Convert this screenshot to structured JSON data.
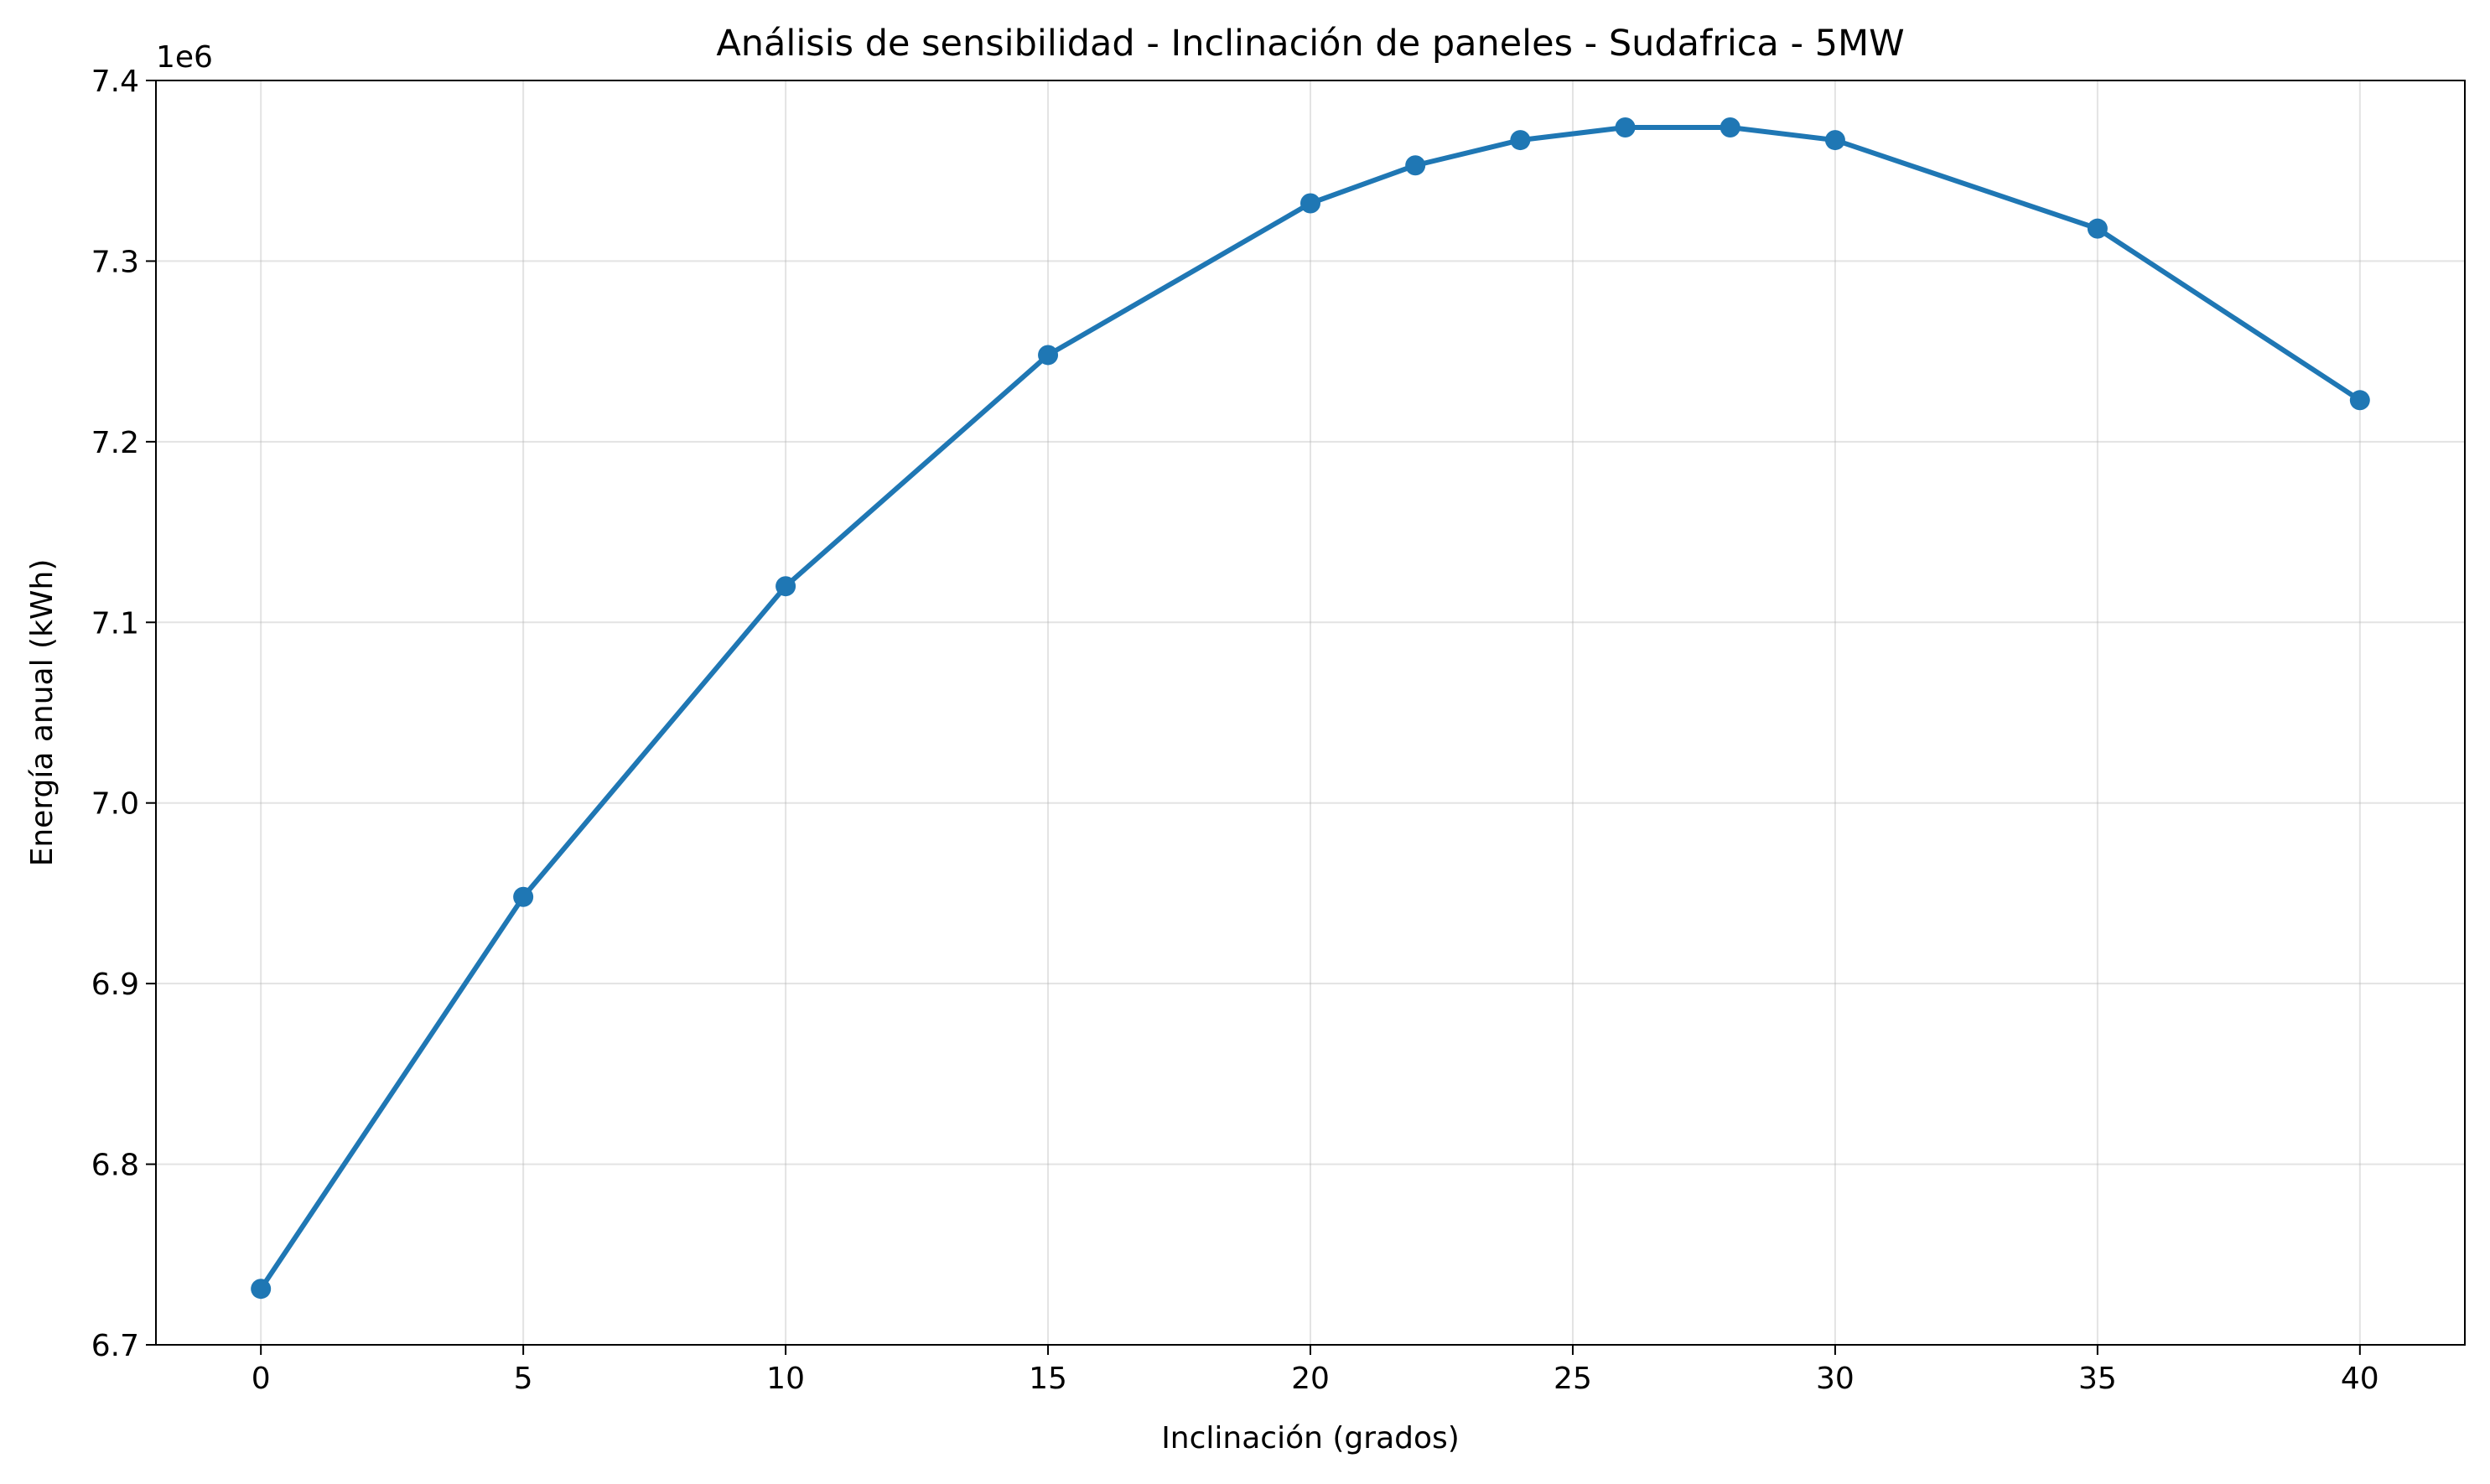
{
  "chart_data": {
    "type": "line",
    "title": "Análisis de sensibilidad - Inclinación de paneles - Sudafrica - 5MW",
    "xlabel": "Inclinación (grados)",
    "ylabel": "Energía anual (kWh)",
    "y_offset_label": "1e6",
    "y_scale_factor": 1000000,
    "xlim": [
      -2,
      42
    ],
    "ylim": [
      6.7,
      7.4
    ],
    "x_ticks": [
      0,
      5,
      10,
      15,
      20,
      25,
      30,
      35,
      40
    ],
    "y_ticks": [
      6.7,
      6.8,
      6.9,
      7.0,
      7.1,
      7.2,
      7.3,
      7.4
    ],
    "x_tick_labels": [
      "0",
      "5",
      "10",
      "15",
      "20",
      "25",
      "30",
      "35",
      "40"
    ],
    "y_tick_labels": [
      "6.7",
      "6.8",
      "6.9",
      "7.0",
      "7.1",
      "7.2",
      "7.3",
      "7.4"
    ],
    "grid": true,
    "series": [
      {
        "color": "#1f77b4",
        "marker": "circle",
        "x": [
          0,
          5,
          10,
          15,
          20,
          22,
          24,
          26,
          28,
          30,
          35,
          40
        ],
        "y": [
          6.731,
          6.948,
          7.12,
          7.248,
          7.332,
          7.353,
          7.367,
          7.374,
          7.374,
          7.367,
          7.318,
          7.223
        ]
      }
    ]
  }
}
